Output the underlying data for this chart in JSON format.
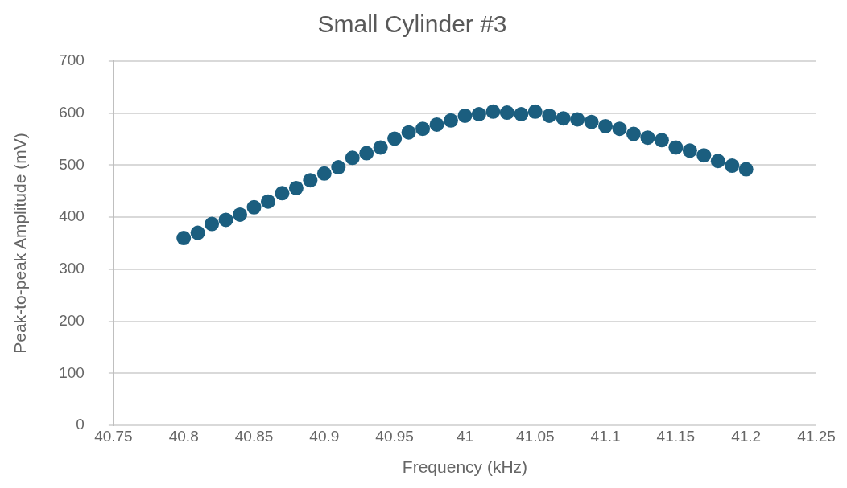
{
  "chart_data": {
    "type": "scatter",
    "title": "Small Cylinder #3",
    "xlabel": "Frequency (kHz)",
    "ylabel": "Peak-to-peak Amplitude (mV)",
    "x": [
      40.8,
      40.81,
      40.82,
      40.83,
      40.84,
      40.85,
      40.86,
      40.87,
      40.88,
      40.89,
      40.9,
      40.91,
      40.92,
      40.93,
      40.94,
      40.95,
      40.96,
      40.97,
      40.98,
      40.99,
      41,
      41.01,
      41.02,
      41.03,
      41.04,
      41.05,
      41.06,
      41.07,
      41.08,
      41.09,
      41.1,
      41.11,
      41.12,
      41.13,
      41.14,
      41.15,
      41.16,
      41.17,
      41.18,
      41.19,
      41.2
    ],
    "series": [
      {
        "color": "#1b5e7f",
        "values": [
          360,
          370,
          387,
          395,
          405,
          419,
          430,
          446,
          456,
          471,
          484,
          496,
          514,
          523,
          534,
          551,
          563,
          570,
          578,
          586,
          595,
          598,
          603,
          601,
          598,
          603,
          595,
          590,
          588,
          583,
          575,
          570,
          560,
          553,
          548,
          534,
          528,
          519,
          508,
          499,
          492
        ]
      }
    ],
    "xlim": [
      40.75,
      41.25
    ],
    "xticks": [
      40.75,
      40.8,
      40.85,
      40.9,
      40.95,
      41,
      41.05,
      41.1,
      41.15,
      41.2,
      41.25
    ],
    "ylim": [
      0,
      700
    ],
    "yticks": [
      0,
      100,
      200,
      300,
      400,
      500,
      600,
      700
    ],
    "grid": "y",
    "legend": false,
    "marker": "circle"
  }
}
